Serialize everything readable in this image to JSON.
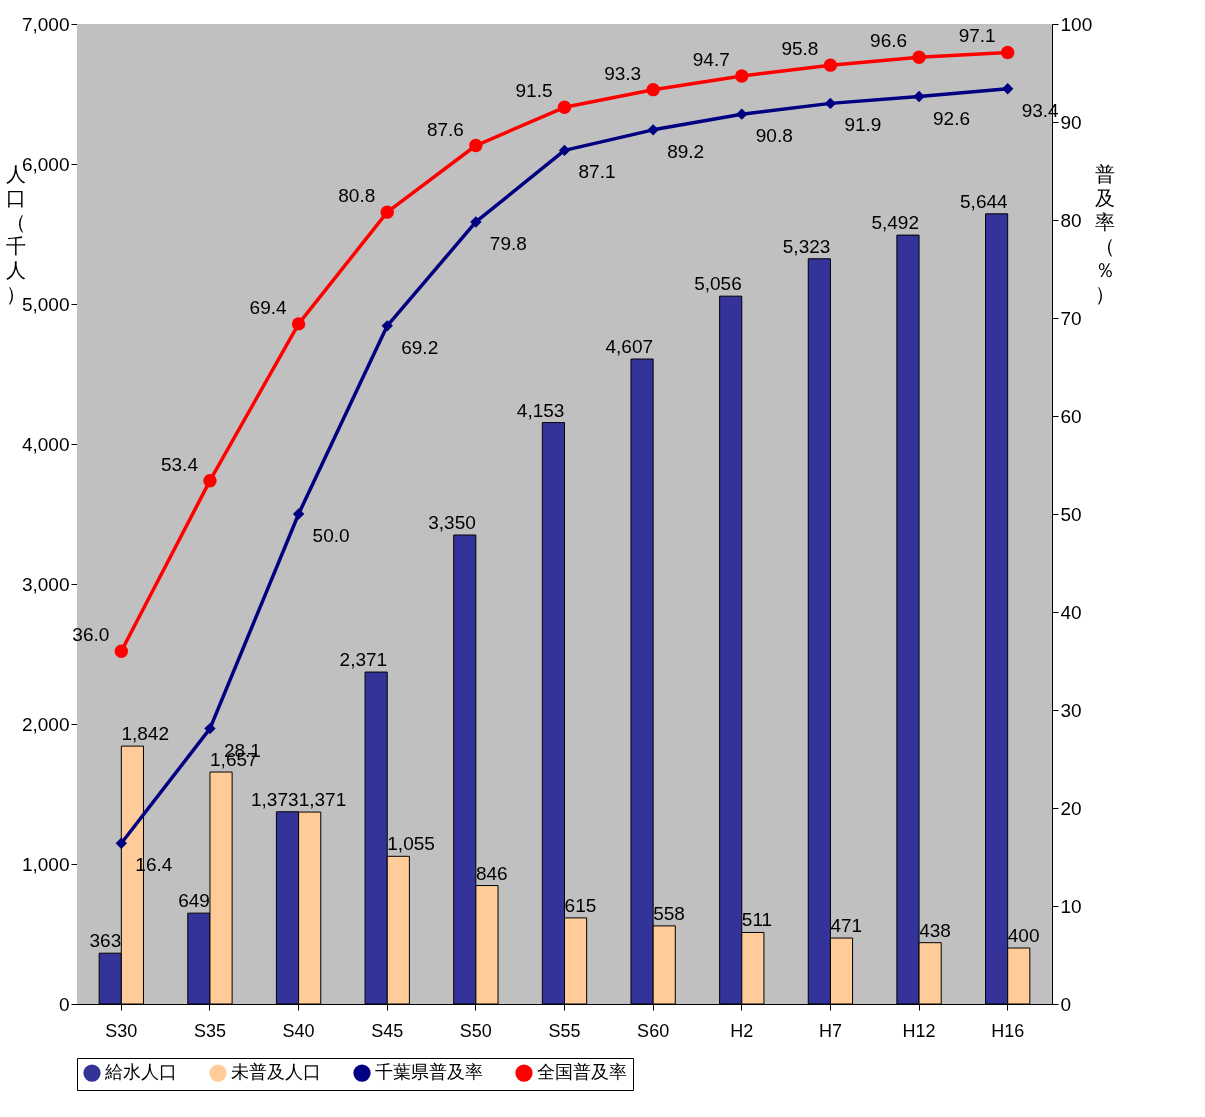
{
  "chart_data": {
    "type": "bar",
    "categories": [
      "S30",
      "S35",
      "S40",
      "S45",
      "S50",
      "S55",
      "S60",
      "H2",
      "H7",
      "H12",
      "H16"
    ],
    "ylabel": "人口（千人）",
    "y2label": "普及率（％）",
    "ylim": [
      0,
      7000
    ],
    "yticks": [
      0,
      {
        "value": 1000,
        "label": "1,000"
      },
      {
        "value": 2000,
        "label": "2,000"
      },
      {
        "value": 3000,
        "label": "3,000"
      },
      {
        "value": 4000,
        "label": "4,000"
      },
      {
        "value": 5000,
        "label": "5,000"
      },
      {
        "value": 6000,
        "label": "6,000"
      },
      {
        "value": 7000,
        "label": "7,000"
      }
    ],
    "y2lim": [
      0,
      100
    ],
    "y2ticks": [
      0,
      10,
      20,
      30,
      40,
      50,
      60,
      70,
      80,
      90,
      100
    ],
    "legend": "bottom",
    "series": [
      {
        "name": "給水人口",
        "type": "bar",
        "color": "#333399",
        "values": [
          363,
          649,
          1373,
          2371,
          3350,
          4153,
          4607,
          5056,
          5323,
          5492,
          5644
        ],
        "value_labels": [
          "363",
          "649",
          "1,373",
          "2,371",
          "3,350",
          "4,153",
          "4,607",
          "5,056",
          "5,323",
          "5,492",
          "5,644"
        ]
      },
      {
        "name": "未普及人口",
        "type": "bar",
        "color": "#ffcc99",
        "values": [
          1842,
          1657,
          1371,
          1055,
          846,
          615,
          558,
          511,
          471,
          438,
          400
        ],
        "value_labels": [
          "1,842",
          "1,657",
          "1,371",
          "1,055",
          "846",
          "615",
          "558",
          "511",
          "471",
          "438",
          "400"
        ]
      },
      {
        "name": "千葉県普及率",
        "type": "line",
        "axis": "y2",
        "marker": "diamond",
        "color": "#000080",
        "values": [
          16.4,
          28.1,
          50.0,
          69.2,
          79.8,
          87.1,
          89.2,
          90.8,
          91.9,
          92.6,
          93.4
        ],
        "value_labels": [
          "16.4",
          "28.1",
          "50.0",
          "69.2",
          "79.8",
          "87.1",
          "89.2",
          "90.8",
          "91.9",
          "92.6",
          "93.4"
        ]
      },
      {
        "name": "全国普及率",
        "type": "line",
        "axis": "y2",
        "marker": "circle",
        "color": "#ff0000",
        "values": [
          36.0,
          53.4,
          69.4,
          80.8,
          87.6,
          91.5,
          93.3,
          94.7,
          95.8,
          96.6,
          97.1
        ],
        "value_labels": [
          "36.0",
          "53.4",
          "69.4",
          "80.8",
          "87.6",
          "91.5",
          "93.3",
          "94.7",
          "95.8",
          "96.6",
          "97.1"
        ]
      }
    ]
  }
}
